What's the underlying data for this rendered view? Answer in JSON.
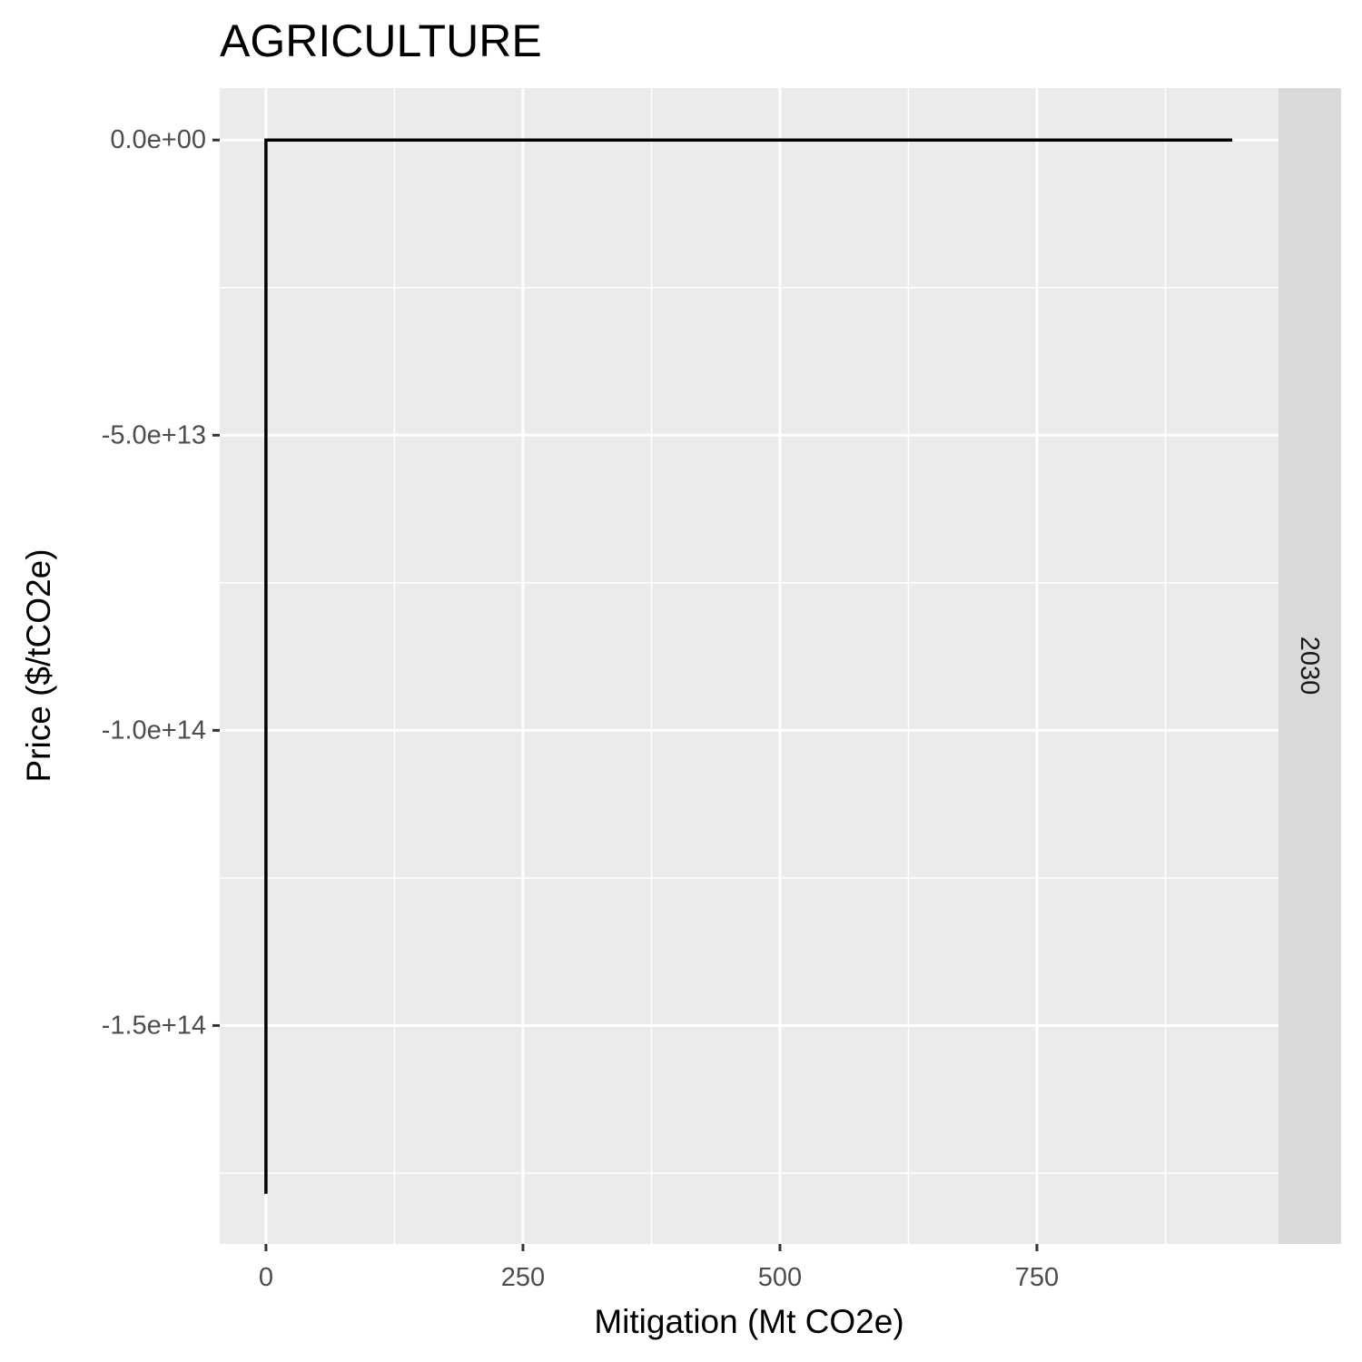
{
  "chart_data": {
    "type": "line",
    "title": "AGRICULTURE",
    "xlabel": "Mitigation (Mt CO2e)",
    "ylabel": "Price ($/tCO2e)",
    "facet_label": "2030",
    "xlim": [
      -45,
      985
    ],
    "ylim": [
      -187000000000000,
      8800000000000
    ],
    "x_ticks": [
      {
        "value": 0,
        "label": "0"
      },
      {
        "value": 250,
        "label": "250"
      },
      {
        "value": 500,
        "label": "500"
      },
      {
        "value": 750,
        "label": "750"
      }
    ],
    "x_minor": [
      125,
      375,
      625,
      875
    ],
    "y_ticks": [
      {
        "value": 0,
        "label": "0.0e+00"
      },
      {
        "value": -50000000000000,
        "label": "-5.0e+13"
      },
      {
        "value": -100000000000000,
        "label": "-1.0e+14"
      },
      {
        "value": -150000000000000,
        "label": "-1.5e+14"
      }
    ],
    "y_minor": [
      -25000000000000,
      -75000000000000,
      -125000000000000,
      -175000000000000
    ],
    "grid": true,
    "series": [
      {
        "color": "#000000",
        "points": [
          {
            "x": 0,
            "y": -178500000000000
          },
          {
            "x": 0,
            "y": 0
          },
          {
            "x": 940,
            "y": 0
          }
        ]
      }
    ]
  }
}
